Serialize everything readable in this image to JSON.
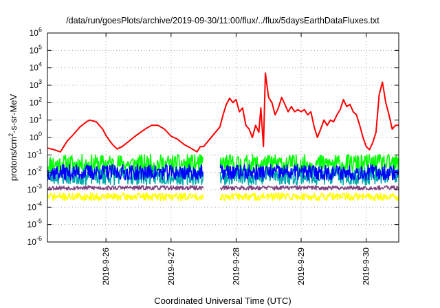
{
  "chart_data": {
    "type": "line",
    "title": "/data/run/goesPlots/archive/2019-09-30/11:00/flux/../flux/5daysEarthDataFluxes.txt",
    "xlabel": "Coordinated Universal Time (UTC)",
    "ylabel": {
      "base": "protons/cm",
      "sup": "2",
      "rest": "-s-sr-MeV"
    },
    "yscale": "log",
    "ylim": [
      1e-06,
      1000000.0
    ],
    "y_ticks": [
      {
        "value": 1e-06,
        "exp": "-6"
      },
      {
        "value": 1e-05,
        "exp": "-5"
      },
      {
        "value": 0.0001,
        "exp": "-4"
      },
      {
        "value": 0.001,
        "exp": "-3"
      },
      {
        "value": 0.01,
        "exp": "-2"
      },
      {
        "value": 0.1,
        "exp": "-1"
      },
      {
        "value": 1,
        "exp": "0"
      },
      {
        "value": 10,
        "exp": "1"
      },
      {
        "value": 100,
        "exp": "2"
      },
      {
        "value": 1000.0,
        "exp": "3"
      },
      {
        "value": 10000.0,
        "exp": "4"
      },
      {
        "value": 100000.0,
        "exp": "5"
      },
      {
        "value": 1000000.0,
        "exp": "6"
      }
    ],
    "x_range_days": [
      25.1,
      30.5
    ],
    "x_ticks": [
      {
        "day": 26,
        "label": "2019-9-26"
      },
      {
        "day": 27,
        "label": "2019-9-27"
      },
      {
        "day": 28,
        "label": "2019-9-28"
      },
      {
        "day": 29,
        "label": "2019-9-29"
      },
      {
        "day": 30,
        "label": "2019-9-30"
      }
    ],
    "grid": true,
    "data_gap": [
      27.5,
      27.75
    ],
    "series": [
      {
        "color": "#ff0000",
        "points": [
          [
            25.1,
            0.25
          ],
          [
            25.2,
            0.2
          ],
          [
            25.3,
            0.15
          ],
          [
            25.35,
            0.3
          ],
          [
            25.4,
            0.6
          ],
          [
            25.5,
            1.5
          ],
          [
            25.6,
            4
          ],
          [
            25.7,
            8
          ],
          [
            25.75,
            10
          ],
          [
            25.85,
            8
          ],
          [
            25.95,
            3
          ],
          [
            26.0,
            1.3
          ],
          [
            26.05,
            0.7
          ],
          [
            26.1,
            0.4
          ],
          [
            26.17,
            0.22
          ],
          [
            26.25,
            0.3
          ],
          [
            26.35,
            0.6
          ],
          [
            26.45,
            1.2
          ],
          [
            26.6,
            3
          ],
          [
            26.7,
            5
          ],
          [
            26.8,
            5
          ],
          [
            26.9,
            3
          ],
          [
            27.0,
            1.2
          ],
          [
            27.1,
            0.8
          ],
          [
            27.2,
            0.4
          ],
          [
            27.3,
            0.25
          ],
          [
            27.4,
            0.15
          ],
          [
            27.45,
            0.3
          ],
          [
            27.5,
            0.3
          ],
          [
            27.75,
            4
          ],
          [
            27.8,
            20
          ],
          [
            27.85,
            80
          ],
          [
            27.9,
            180
          ],
          [
            27.95,
            100
          ],
          [
            28.0,
            150
          ],
          [
            28.05,
            30
          ],
          [
            28.1,
            50
          ],
          [
            28.15,
            5
          ],
          [
            28.2,
            3
          ],
          [
            28.25,
            1
          ],
          [
            28.3,
            5
          ],
          [
            28.35,
            2
          ],
          [
            28.38,
            50
          ],
          [
            28.42,
            0.3
          ],
          [
            28.45,
            5000
          ],
          [
            28.5,
            200
          ],
          [
            28.55,
            100
          ],
          [
            28.6,
            20
          ],
          [
            28.65,
            50
          ],
          [
            28.7,
            200
          ],
          [
            28.75,
            80
          ],
          [
            28.8,
            30
          ],
          [
            28.85,
            60
          ],
          [
            28.9,
            30
          ],
          [
            28.95,
            40
          ],
          [
            29.0,
            30
          ],
          [
            29.05,
            40
          ],
          [
            29.1,
            20
          ],
          [
            29.15,
            30
          ],
          [
            29.2,
            4
          ],
          [
            29.25,
            1
          ],
          [
            29.3,
            3
          ],
          [
            29.35,
            10
          ],
          [
            29.4,
            5
          ],
          [
            29.45,
            10
          ],
          [
            29.5,
            8
          ],
          [
            29.55,
            20
          ],
          [
            29.6,
            40
          ],
          [
            29.65,
            150
          ],
          [
            29.7,
            60
          ],
          [
            29.75,
            80
          ],
          [
            29.8,
            30
          ],
          [
            29.85,
            20
          ],
          [
            29.9,
            5
          ],
          [
            29.95,
            1
          ],
          [
            30.0,
            0.3
          ],
          [
            30.05,
            0.2
          ],
          [
            30.1,
            0.5
          ],
          [
            30.15,
            2
          ],
          [
            30.2,
            300
          ],
          [
            30.25,
            1500
          ],
          [
            30.3,
            100
          ],
          [
            30.35,
            20
          ],
          [
            30.4,
            3
          ],
          [
            30.45,
            5
          ],
          [
            30.5,
            5
          ]
        ]
      },
      {
        "color": "#00ff00",
        "base": 0.03,
        "amp": 0.55,
        "noise_seed": 11
      },
      {
        "color": "#00aaaa",
        "base": 0.006,
        "amp": 0.5,
        "noise_seed": 23
      },
      {
        "color": "#0000ff",
        "base": 0.01,
        "amp": 0.45,
        "noise_seed": 37
      },
      {
        "color": "#804080",
        "base": 0.0013,
        "amp": 0.12,
        "noise_seed": 53
      },
      {
        "color": "#ffff00",
        "base": 0.0004,
        "amp": 0.22,
        "noise_seed": 71
      }
    ]
  }
}
